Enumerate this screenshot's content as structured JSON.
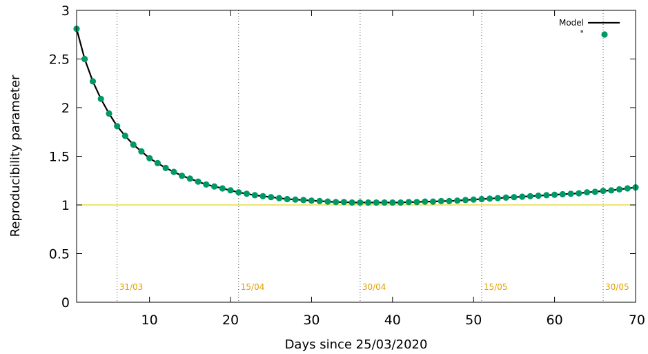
{
  "chart_data": {
    "type": "line",
    "title": "",
    "xlabel": "Days since 25/03/2020",
    "ylabel": "Reproducibility parameter",
    "xlim": [
      1,
      70
    ],
    "ylim": [
      0,
      3
    ],
    "xticks": [
      10,
      20,
      30,
      40,
      50,
      60,
      70
    ],
    "yticks": [
      0,
      0.5,
      1,
      1.5,
      2,
      2.5,
      3
    ],
    "x_tick_labels": [
      "10",
      "20",
      "30",
      "40",
      "50",
      "60",
      "70"
    ],
    "y_tick_labels": [
      "0",
      "0.5",
      "1",
      "1.5",
      "2",
      "2.5",
      "3"
    ],
    "grid": false,
    "legend_position": "top-right",
    "reference_line": {
      "y": 1,
      "color": "#e6d21a"
    },
    "date_markers": [
      {
        "x": 6,
        "label": "31/03"
      },
      {
        "x": 21,
        "label": "15/04"
      },
      {
        "x": 36,
        "label": "30/04"
      },
      {
        "x": 51,
        "label": "15/05"
      },
      {
        "x": 66,
        "label": "30/05"
      }
    ],
    "series": [
      {
        "name": "Model",
        "style": "line",
        "color": "#000000",
        "x": [
          1,
          2,
          3,
          4,
          5,
          6,
          7,
          8,
          9,
          10,
          11,
          12,
          13,
          14,
          15,
          16,
          17,
          18,
          19,
          20,
          21,
          22,
          23,
          24,
          25,
          26,
          27,
          28,
          29,
          30,
          31,
          32,
          33,
          34,
          35,
          36,
          37,
          38,
          39,
          40,
          41,
          42,
          43,
          44,
          45,
          46,
          47,
          48,
          49,
          50,
          51,
          52,
          53,
          54,
          55,
          56,
          57,
          58,
          59,
          60,
          61,
          62,
          63,
          64,
          65,
          66,
          67,
          68,
          69,
          70
        ],
        "y": [
          2.81,
          2.5,
          2.27,
          2.09,
          1.94,
          1.81,
          1.71,
          1.62,
          1.55,
          1.48,
          1.43,
          1.38,
          1.34,
          1.3,
          1.27,
          1.24,
          1.21,
          1.19,
          1.17,
          1.15,
          1.13,
          1.115,
          1.1,
          1.09,
          1.08,
          1.07,
          1.06,
          1.055,
          1.05,
          1.045,
          1.04,
          1.035,
          1.03,
          1.03,
          1.025,
          1.025,
          1.025,
          1.025,
          1.025,
          1.025,
          1.025,
          1.03,
          1.03,
          1.035,
          1.035,
          1.04,
          1.04,
          1.045,
          1.05,
          1.055,
          1.06,
          1.065,
          1.07,
          1.075,
          1.08,
          1.085,
          1.09,
          1.095,
          1.1,
          1.105,
          1.11,
          1.115,
          1.12,
          1.13,
          1.135,
          1.145,
          1.15,
          1.16,
          1.17,
          1.18
        ]
      },
      {
        "name": "\"",
        "style": "points",
        "color": "#009966",
        "x": [
          1,
          2,
          3,
          4,
          5,
          6,
          7,
          8,
          9,
          10,
          11,
          12,
          13,
          14,
          15,
          16,
          17,
          18,
          19,
          20,
          21,
          22,
          23,
          24,
          25,
          26,
          27,
          28,
          29,
          30,
          31,
          32,
          33,
          34,
          35,
          36,
          37,
          38,
          39,
          40,
          41,
          42,
          43,
          44,
          45,
          46,
          47,
          48,
          49,
          50,
          51,
          52,
          53,
          54,
          55,
          56,
          57,
          58,
          59,
          60,
          61,
          62,
          63,
          64,
          65,
          66,
          67,
          68,
          69,
          70
        ],
        "y": [
          2.81,
          2.5,
          2.27,
          2.09,
          1.94,
          1.81,
          1.71,
          1.62,
          1.55,
          1.48,
          1.43,
          1.38,
          1.34,
          1.3,
          1.27,
          1.24,
          1.21,
          1.19,
          1.17,
          1.15,
          1.13,
          1.115,
          1.1,
          1.09,
          1.08,
          1.07,
          1.06,
          1.055,
          1.05,
          1.045,
          1.04,
          1.035,
          1.03,
          1.03,
          1.025,
          1.025,
          1.025,
          1.025,
          1.025,
          1.025,
          1.025,
          1.03,
          1.03,
          1.035,
          1.035,
          1.04,
          1.04,
          1.045,
          1.05,
          1.055,
          1.06,
          1.065,
          1.07,
          1.075,
          1.08,
          1.085,
          1.09,
          1.095,
          1.1,
          1.105,
          1.11,
          1.115,
          1.12,
          1.13,
          1.135,
          1.145,
          1.15,
          1.16,
          1.17,
          1.18
        ]
      }
    ],
    "marker_color": "#e0a000"
  }
}
